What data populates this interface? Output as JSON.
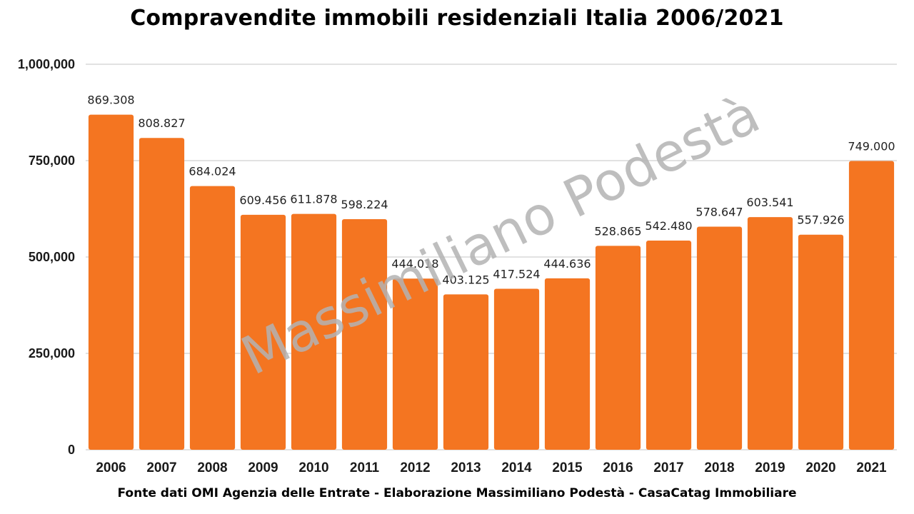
{
  "chart_data": {
    "type": "bar",
    "title": "Compravendite immobili residenziali Italia 2006/2021",
    "xlabel": "",
    "ylabel": "",
    "categories": [
      "2006",
      "2007",
      "2008",
      "2009",
      "2010",
      "2011",
      "2012",
      "2013",
      "2014",
      "2015",
      "2016",
      "2017",
      "2018",
      "2019",
      "2020",
      "2021"
    ],
    "values": [
      869308,
      808827,
      684024,
      609456,
      611878,
      598224,
      444018,
      403125,
      417524,
      444636,
      528865,
      542480,
      578647,
      603541,
      557926,
      749000
    ],
    "data_labels": [
      "869.308",
      "808.827",
      "684.024",
      "609.456",
      "611.878",
      "598.224",
      "444.018",
      "403.125",
      "417.524",
      "444.636",
      "528.865",
      "542.480",
      "578.647",
      "603.541",
      "557.926",
      "749.000"
    ],
    "ylim": [
      0,
      1000000
    ],
    "y_ticks": [
      0,
      250000,
      500000,
      750000,
      1000000
    ],
    "y_tick_labels": [
      "0",
      "250,000",
      "500,000",
      "750,000",
      "1,000,000"
    ],
    "grid": true,
    "legend": "none",
    "bar_color": "#F47521",
    "gridline_color": "#d9d9d9"
  },
  "source_note": "Fonte dati OMI Agenzia delle Entrate - Elaborazione Massimiliano Podestà - CasaCatag Immobiliare",
  "watermark": "Massimiliano Podestà"
}
